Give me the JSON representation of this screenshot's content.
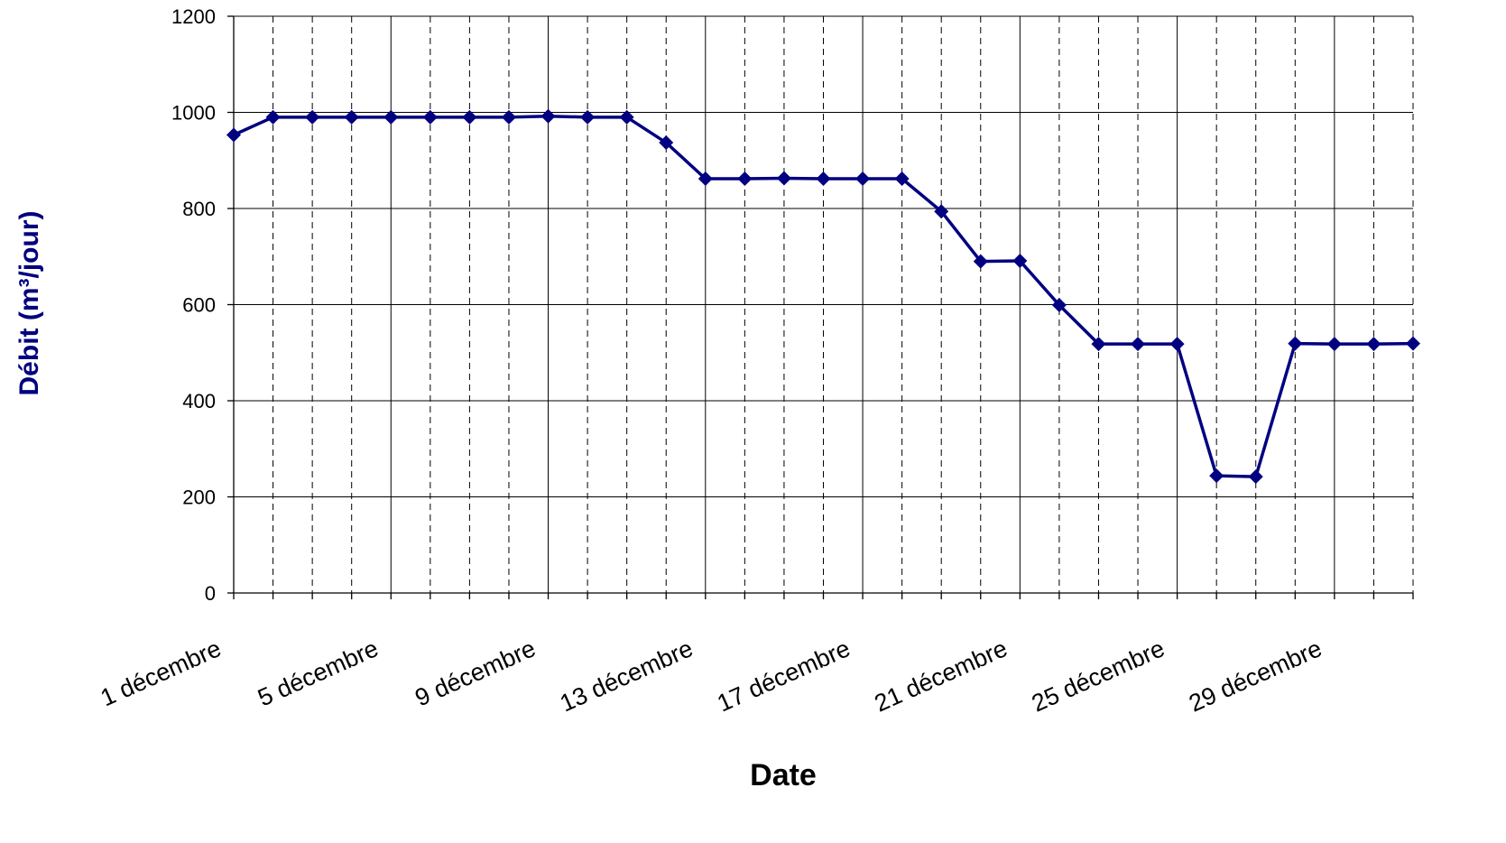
{
  "chart_data": {
    "type": "line",
    "title": "",
    "xlabel": "Date",
    "ylabel": "Débit (m³/jour)",
    "ylim": [
      0,
      1200
    ],
    "yticks": [
      0,
      200,
      400,
      600,
      800,
      1000,
      1200
    ],
    "x_tick_labels": [
      "1 décembre",
      "5 décembre",
      "9 décembre",
      "13 décembre",
      "17 décembre",
      "21 décembre",
      "25 décembre",
      "29 décembre"
    ],
    "x_tick_label_days": [
      1,
      5,
      9,
      13,
      17,
      21,
      25,
      29
    ],
    "x_range_days": [
      1,
      31
    ],
    "grid": {
      "horizontal": "solid",
      "vertical_major": "solid",
      "vertical_minor": "dashed"
    },
    "legend": "none",
    "series": [
      {
        "color": "#000080",
        "marker": "diamond",
        "x": [
          1,
          2,
          3,
          4,
          5,
          6,
          7,
          8,
          9,
          10,
          11,
          12,
          13,
          14,
          15,
          16,
          17,
          18,
          19,
          20,
          21,
          22,
          23,
          24,
          25,
          26,
          27,
          28,
          29,
          30,
          31
        ],
        "values": [
          953,
          990,
          990,
          990,
          990,
          990,
          990,
          990,
          992,
          990,
          990,
          937,
          862,
          862,
          863,
          862,
          862,
          862,
          794,
          690,
          691,
          599,
          518,
          518,
          518,
          244,
          242,
          519,
          518,
          518,
          519
        ]
      }
    ]
  },
  "colors": {
    "series": "#000080",
    "axis_title": "#000080",
    "grid": "#000000",
    "tick_text": "#000000"
  }
}
